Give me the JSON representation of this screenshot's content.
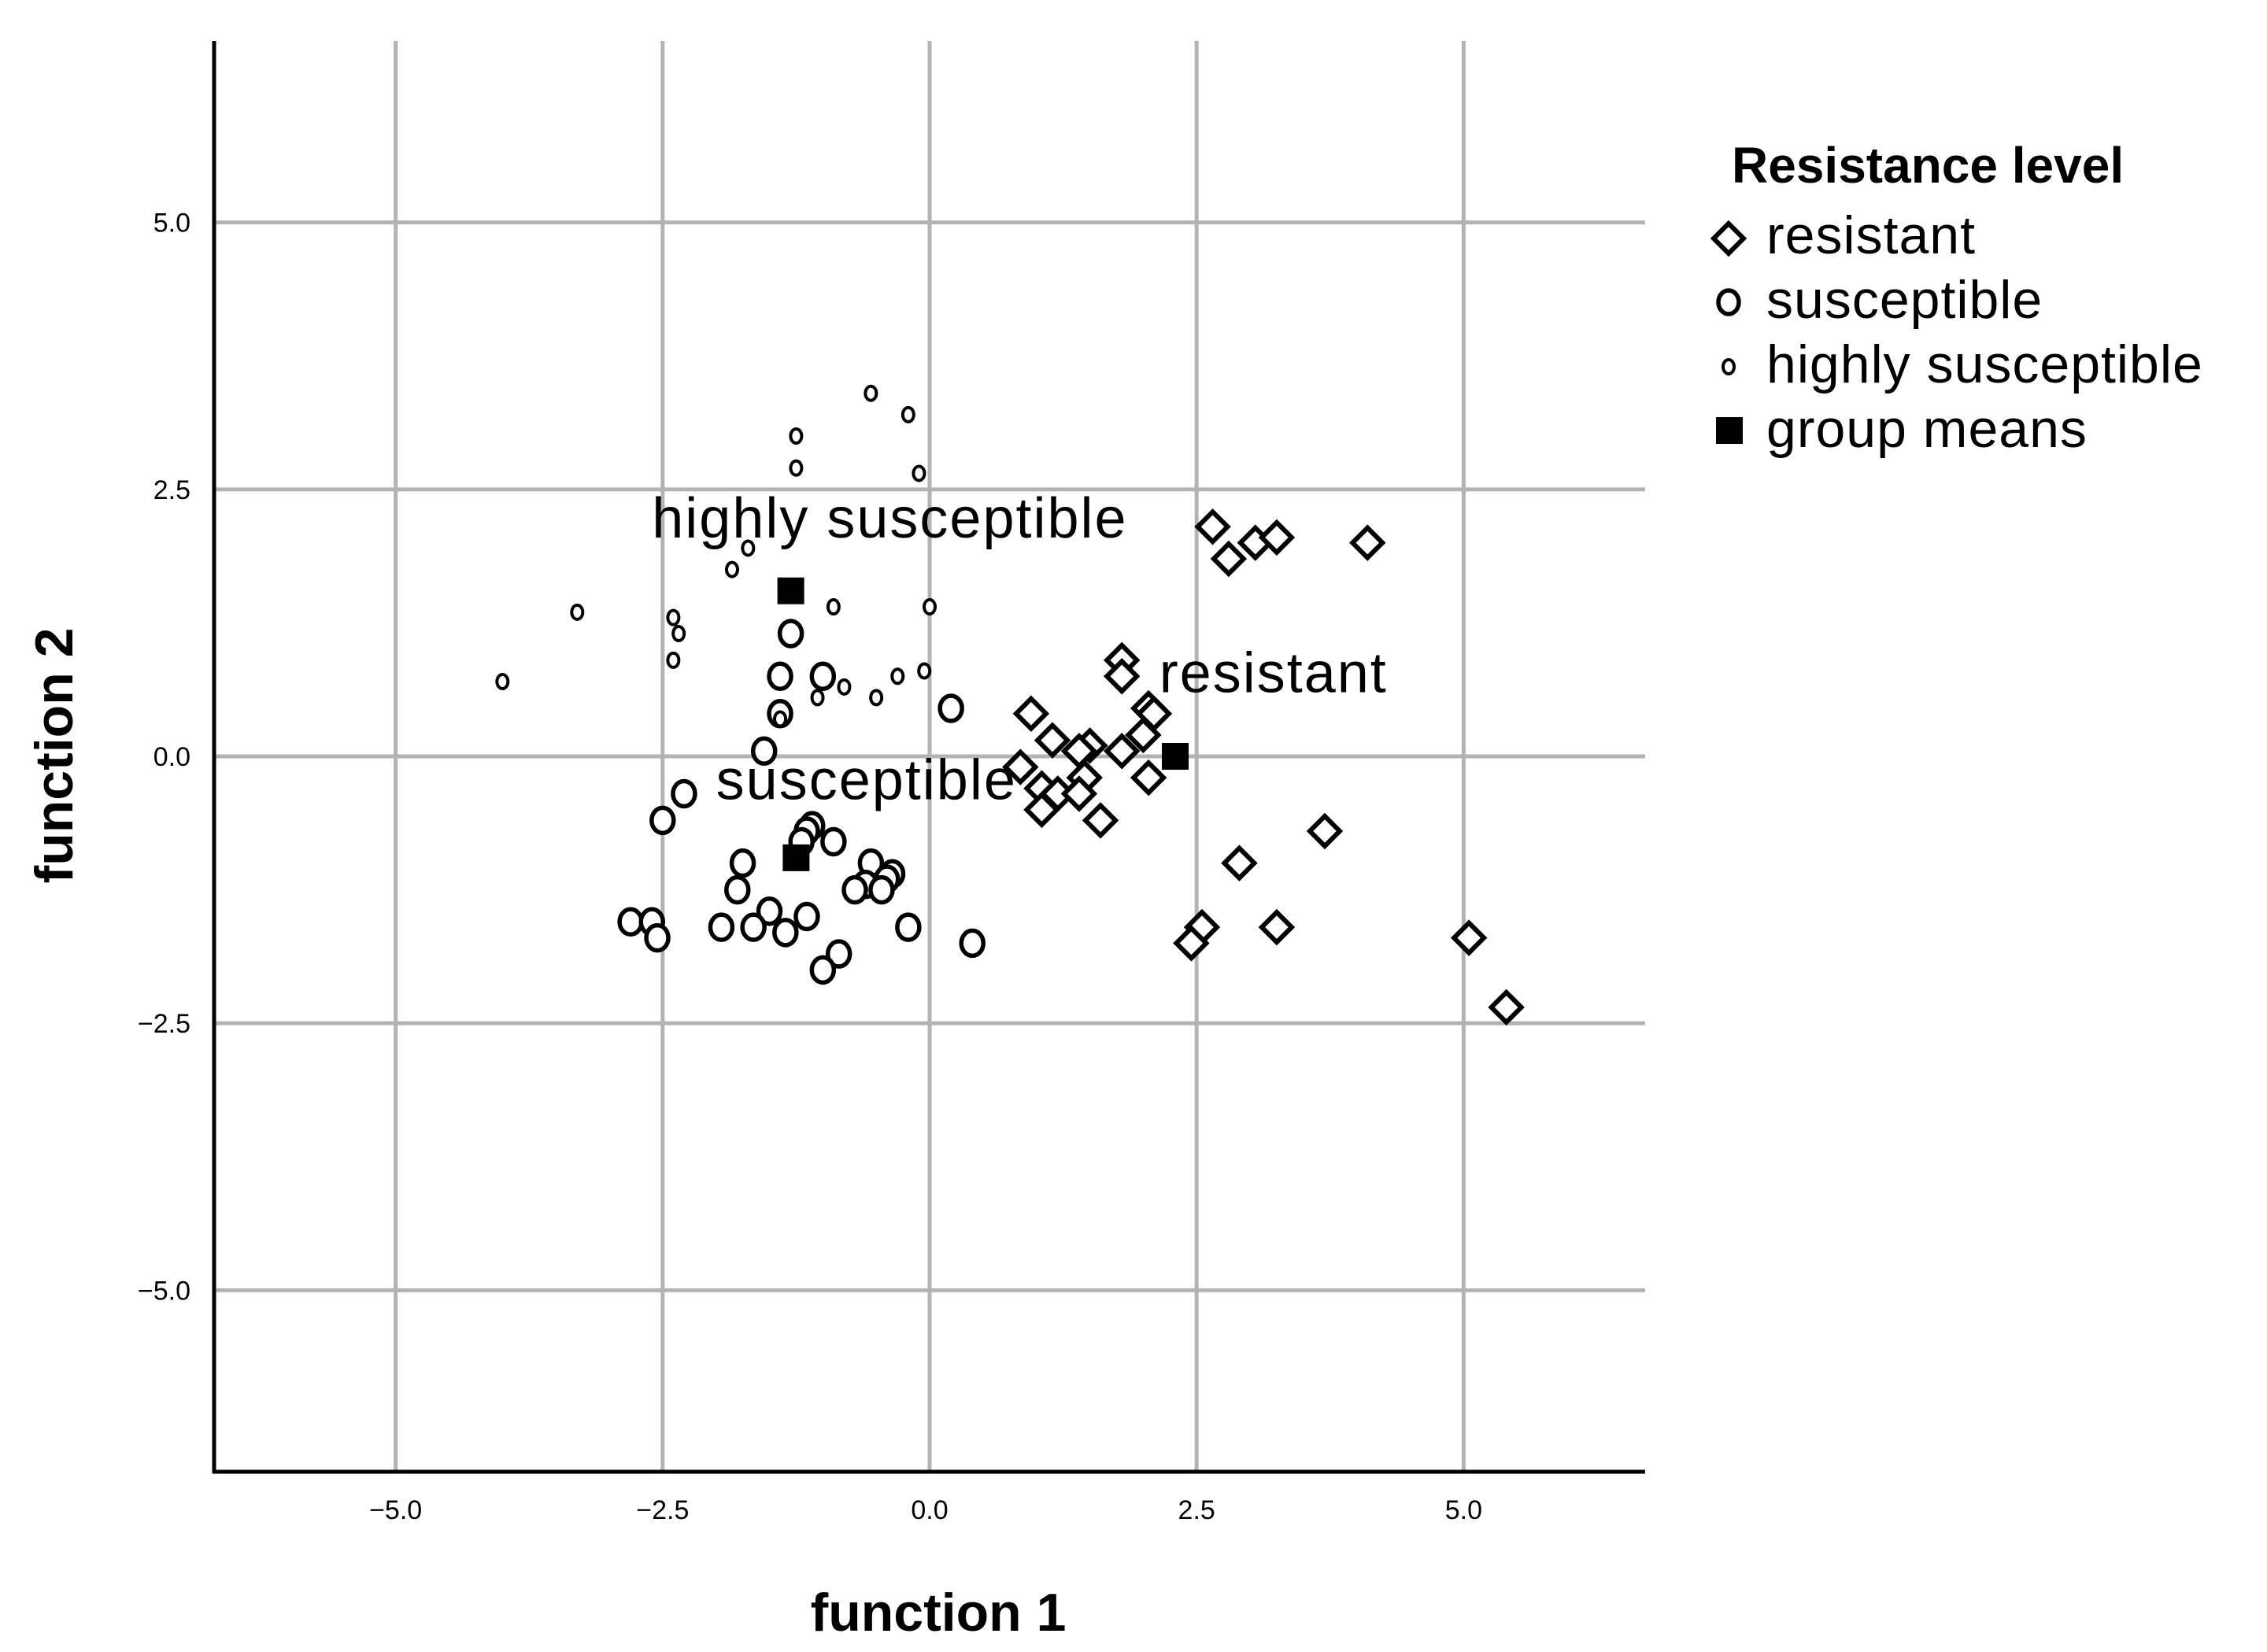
{
  "chart_data": {
    "type": "scatter",
    "title": "",
    "xlabel": "function 1",
    "ylabel": "function 2",
    "xlim": [
      -6.7,
      6.7
    ],
    "ylim": [
      -6.7,
      6.7
    ],
    "xticks": [
      -5.0,
      -2.5,
      0.0,
      2.5,
      5.0
    ],
    "yticks": [
      5.0,
      2.5,
      0.0,
      -2.5,
      -5.0
    ],
    "xtick_labels": [
      "−5.0",
      "−2.5",
      "0.0",
      "2.5",
      "5.0"
    ],
    "ytick_labels": [
      "5.0",
      "2.5",
      "0.0",
      "−2.5",
      "−5.0"
    ],
    "grid": true,
    "legend_title": "Resistance level",
    "legend_position": "right",
    "series": [
      {
        "name": "resistant",
        "marker": "diamond",
        "points": [
          [
            2.65,
            2.15
          ],
          [
            2.8,
            1.85
          ],
          [
            3.05,
            2.0
          ],
          [
            3.25,
            2.05
          ],
          [
            4.1,
            2.0
          ],
          [
            1.8,
            0.9
          ],
          [
            1.8,
            0.75
          ],
          [
            2.05,
            0.45
          ],
          [
            2.1,
            0.4
          ],
          [
            2.0,
            0.2
          ],
          [
            0.95,
            0.4
          ],
          [
            1.15,
            0.15
          ],
          [
            1.5,
            0.1
          ],
          [
            1.4,
            0.05
          ],
          [
            1.8,
            0.05
          ],
          [
            0.85,
            -0.1
          ],
          [
            1.05,
            -0.3
          ],
          [
            1.2,
            -0.35
          ],
          [
            1.45,
            -0.2
          ],
          [
            1.4,
            -0.35
          ],
          [
            1.05,
            -0.5
          ],
          [
            1.6,
            -0.6
          ],
          [
            2.05,
            -0.2
          ],
          [
            2.9,
            -1.0
          ],
          [
            3.7,
            -0.7
          ],
          [
            2.55,
            -1.6
          ],
          [
            2.45,
            -1.75
          ],
          [
            3.25,
            -1.6
          ],
          [
            5.05,
            -1.7
          ],
          [
            5.4,
            -2.35
          ]
        ]
      },
      {
        "name": "susceptible",
        "marker": "circle",
        "points": [
          [
            -1.3,
            1.15
          ],
          [
            -1.4,
            0.75
          ],
          [
            -1.0,
            0.75
          ],
          [
            -1.4,
            0.4
          ],
          [
            -1.55,
            0.05
          ],
          [
            0.2,
            0.45
          ],
          [
            -2.3,
            -0.35
          ],
          [
            -2.5,
            -0.6
          ],
          [
            -1.1,
            -0.65
          ],
          [
            -1.15,
            -0.7
          ],
          [
            -1.2,
            -0.8
          ],
          [
            -0.9,
            -0.8
          ],
          [
            -1.75,
            -1.0
          ],
          [
            -0.55,
            -1.0
          ],
          [
            -0.35,
            -1.1
          ],
          [
            -0.4,
            -1.15
          ],
          [
            -1.8,
            -1.25
          ],
          [
            -0.6,
            -1.2
          ],
          [
            -0.7,
            -1.25
          ],
          [
            -0.45,
            -1.25
          ],
          [
            -1.5,
            -1.45
          ],
          [
            -1.15,
            -1.5
          ],
          [
            -2.8,
            -1.55
          ],
          [
            -2.6,
            -1.55
          ],
          [
            -2.55,
            -1.7
          ],
          [
            -1.95,
            -1.6
          ],
          [
            -1.65,
            -1.6
          ],
          [
            -1.35,
            -1.65
          ],
          [
            -0.2,
            -1.6
          ],
          [
            0.4,
            -1.75
          ],
          [
            -0.85,
            -1.85
          ],
          [
            -1.0,
            -2.0
          ]
        ]
      },
      {
        "name": "highly susceptible",
        "marker": "small-circle",
        "points": [
          [
            -0.55,
            3.4
          ],
          [
            -0.2,
            3.2
          ],
          [
            -1.25,
            3.0
          ],
          [
            -1.25,
            2.7
          ],
          [
            -0.1,
            2.65
          ],
          [
            -1.7,
            1.95
          ],
          [
            -1.85,
            1.75
          ],
          [
            -3.3,
            1.35
          ],
          [
            -2.4,
            1.3
          ],
          [
            -2.35,
            1.15
          ],
          [
            -0.9,
            1.4
          ],
          [
            0.0,
            1.4
          ],
          [
            -2.4,
            0.9
          ],
          [
            -4.0,
            0.7
          ],
          [
            -0.8,
            0.65
          ],
          [
            -0.3,
            0.75
          ],
          [
            -0.05,
            0.8
          ],
          [
            -0.5,
            0.55
          ],
          [
            -1.05,
            0.55
          ],
          [
            -1.4,
            0.35
          ]
        ]
      },
      {
        "name": "group means",
        "marker": "square",
        "points": [
          [
            -1.3,
            1.55
          ],
          [
            -1.25,
            -0.95
          ],
          [
            2.3,
            0.0
          ]
        ]
      }
    ],
    "annotations": [
      {
        "text": "highly susceptible",
        "x": -2.6,
        "y": 2.05
      },
      {
        "text": "resistant",
        "x": 2.15,
        "y": 0.6
      },
      {
        "text": "susceptible",
        "x": -2.0,
        "y": -0.4
      }
    ]
  }
}
